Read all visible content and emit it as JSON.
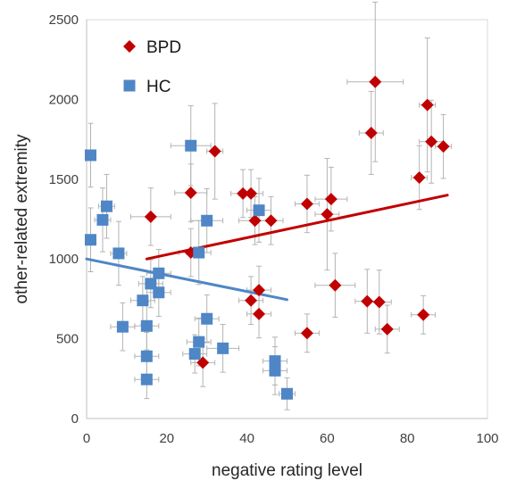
{
  "chart_data": {
    "type": "scatter",
    "xlabel": "negative rating level",
    "ylabel": "other-related extremity",
    "xlim": [
      0,
      100
    ],
    "ylim": [
      0,
      2500
    ],
    "x_ticks": [
      "0",
      "20",
      "40",
      "60",
      "80",
      "100"
    ],
    "y_ticks": [
      "0",
      "500",
      "1000",
      "1500",
      "2000",
      "2500"
    ],
    "grid": false,
    "legend_position": "top-left",
    "error_bars": true,
    "series": [
      {
        "name": "BPD",
        "marker": "diamond",
        "color": "#c00000",
        "points": [
          {
            "x": 72,
            "y": 2110,
            "xerr": 7,
            "yerr": 500
          },
          {
            "x": 85,
            "y": 1965,
            "xerr": 2,
            "yerr": 420
          },
          {
            "x": 71,
            "y": 1790,
            "xerr": 3,
            "yerr": 260
          },
          {
            "x": 86,
            "y": 1735,
            "xerr": 3,
            "yerr": 260
          },
          {
            "x": 89,
            "y": 1705,
            "xerr": 2,
            "yerr": 200
          },
          {
            "x": 32,
            "y": 1675,
            "xerr": 2,
            "yerr": 300
          },
          {
            "x": 83,
            "y": 1510,
            "xerr": 2,
            "yerr": 200
          },
          {
            "x": 26,
            "y": 1415,
            "xerr": 4,
            "yerr": 180
          },
          {
            "x": 39,
            "y": 1410,
            "xerr": 3,
            "yerr": 150
          },
          {
            "x": 41,
            "y": 1410,
            "xerr": 3,
            "yerr": 150
          },
          {
            "x": 61,
            "y": 1375,
            "xerr": 4,
            "yerr": 200
          },
          {
            "x": 55,
            "y": 1345,
            "xerr": 3,
            "yerr": 180
          },
          {
            "x": 60,
            "y": 1280,
            "xerr": 3,
            "yerr": 350
          },
          {
            "x": 16,
            "y": 1265,
            "xerr": 5,
            "yerr": 180
          },
          {
            "x": 42,
            "y": 1240,
            "xerr": 4,
            "yerr": 150
          },
          {
            "x": 46,
            "y": 1240,
            "xerr": 3,
            "yerr": 150
          },
          {
            "x": 26,
            "y": 1040,
            "xerr": 3,
            "yerr": 150
          },
          {
            "x": 62,
            "y": 835,
            "xerr": 5,
            "yerr": 200
          },
          {
            "x": 43,
            "y": 805,
            "xerr": 3,
            "yerr": 150
          },
          {
            "x": 41,
            "y": 740,
            "xerr": 3,
            "yerr": 150
          },
          {
            "x": 70,
            "y": 735,
            "xerr": 3,
            "yerr": 200
          },
          {
            "x": 73,
            "y": 730,
            "xerr": 3,
            "yerr": 200
          },
          {
            "x": 43,
            "y": 655,
            "xerr": 3,
            "yerr": 150
          },
          {
            "x": 84,
            "y": 650,
            "xerr": 3,
            "yerr": 120
          },
          {
            "x": 75,
            "y": 560,
            "xerr": 3,
            "yerr": 150
          },
          {
            "x": 55,
            "y": 535,
            "xerr": 3,
            "yerr": 120
          },
          {
            "x": 29,
            "y": 350,
            "xerr": 3,
            "yerr": 150
          }
        ],
        "trendline": {
          "x": [
            15,
            90
          ],
          "y": [
            1000,
            1400
          ]
        }
      },
      {
        "name": "HC",
        "marker": "square",
        "color": "#4f86c6",
        "points": [
          {
            "x": 1,
            "y": 1650,
            "xerr": 1,
            "yerr": 200
          },
          {
            "x": 26,
            "y": 1710,
            "xerr": 5,
            "yerr": 250
          },
          {
            "x": 5,
            "y": 1330,
            "xerr": 2,
            "yerr": 200
          },
          {
            "x": 4,
            "y": 1245,
            "xerr": 2,
            "yerr": 200
          },
          {
            "x": 43,
            "y": 1305,
            "xerr": 3,
            "yerr": 200
          },
          {
            "x": 30,
            "y": 1240,
            "xerr": 4,
            "yerr": 200
          },
          {
            "x": 1,
            "y": 1120,
            "xerr": 1,
            "yerr": 200
          },
          {
            "x": 8,
            "y": 1035,
            "xerr": 2,
            "yerr": 200
          },
          {
            "x": 28,
            "y": 1040,
            "xerr": 3,
            "yerr": 200
          },
          {
            "x": 18,
            "y": 910,
            "xerr": 3,
            "yerr": 150
          },
          {
            "x": 16,
            "y": 845,
            "xerr": 3,
            "yerr": 150
          },
          {
            "x": 18,
            "y": 790,
            "xerr": 3,
            "yerr": 150
          },
          {
            "x": 14,
            "y": 740,
            "xerr": 3,
            "yerr": 150
          },
          {
            "x": 30,
            "y": 625,
            "xerr": 3,
            "yerr": 150
          },
          {
            "x": 9,
            "y": 575,
            "xerr": 3,
            "yerr": 150
          },
          {
            "x": 15,
            "y": 580,
            "xerr": 3,
            "yerr": 150
          },
          {
            "x": 28,
            "y": 480,
            "xerr": 3,
            "yerr": 150
          },
          {
            "x": 34,
            "y": 440,
            "xerr": 4,
            "yerr": 150
          },
          {
            "x": 27,
            "y": 405,
            "xerr": 3,
            "yerr": 120
          },
          {
            "x": 15,
            "y": 390,
            "xerr": 3,
            "yerr": 150
          },
          {
            "x": 47,
            "y": 360,
            "xerr": 3,
            "yerr": 150
          },
          {
            "x": 47,
            "y": 300,
            "xerr": 3,
            "yerr": 150
          },
          {
            "x": 15,
            "y": 245,
            "xerr": 3,
            "yerr": 120
          },
          {
            "x": 50,
            "y": 155,
            "xerr": 2,
            "yerr": 100
          }
        ],
        "trendline": {
          "x": [
            0,
            50
          ],
          "y": [
            1000,
            745
          ]
        }
      }
    ]
  }
}
